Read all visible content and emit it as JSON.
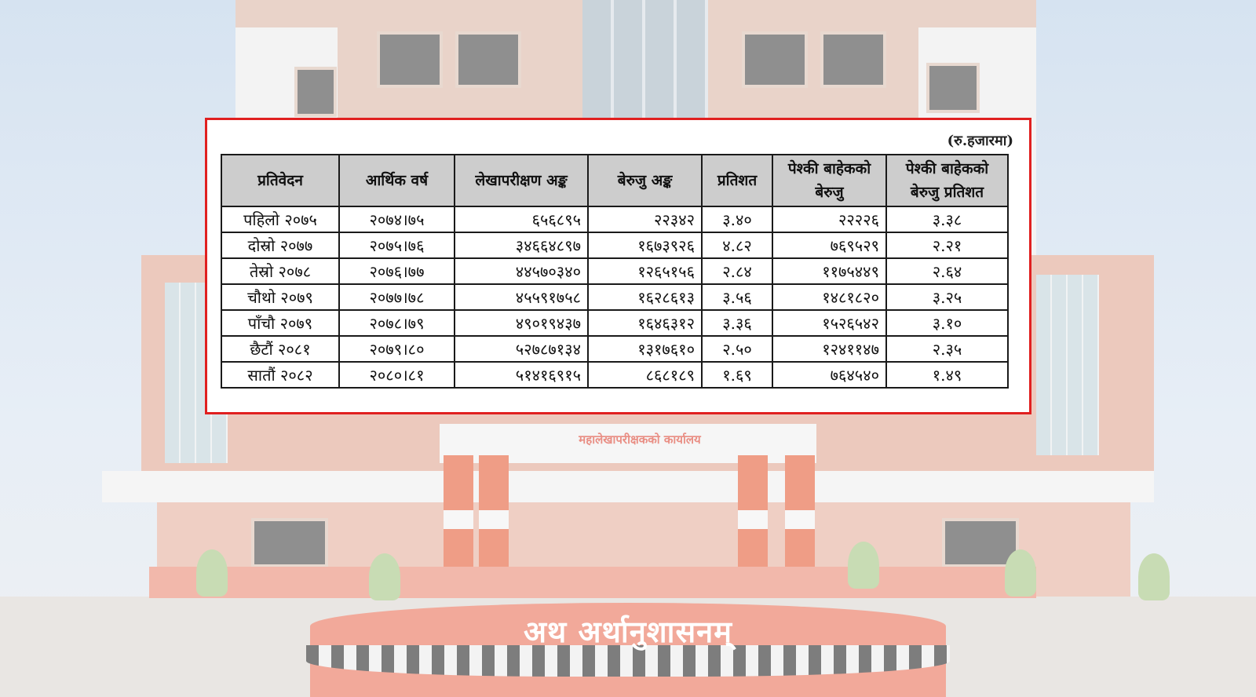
{
  "background": {
    "office_sign": "महालेखापरीक्षकको कार्यालय",
    "motto": "अथ अर्थानुशासनम्"
  },
  "table": {
    "unit_note": "(रु.हजारमा)",
    "headers": [
      "प्रतिवेदन",
      "आर्थिक वर्ष",
      "लेखापरीक्षण अङ्क",
      "बेरुजु अङ्क",
      "प्रतिशत",
      "पेश्की बाहेकको बेरुजु",
      "पेश्की बाहेकको बेरुजु प्रतिशत"
    ],
    "rows": [
      [
        "पहिलो २०७५",
        "२०७४।७५",
        "६५६८९५",
        "२२३४२",
        "३.४०",
        "२२२२६",
        "३.३८"
      ],
      [
        "दोस्रो २०७७",
        "२०७५।७६",
        "३४६६४८९७",
        "१६७३९२६",
        "४.८२",
        "७६९५२९",
        "२.२१"
      ],
      [
        "तेस्रो २०७८",
        "२०७६।७७",
        "४४५७०३४०",
        "१२६५१५६",
        "२.८४",
        "११७५४४९",
        "२.६४"
      ],
      [
        "चौथो २०७९",
        "२०७७।७८",
        "४५५९१७५८",
        "१६२८६१३",
        "३.५६",
        "१४८१८२०",
        "३.२५"
      ],
      [
        "पाँचौ २०७९",
        "२०७८।७९",
        "४९०१९४३७",
        "१६४६३१२",
        "३.३६",
        "१५२६५४२",
        "३.१०"
      ],
      [
        "छैटौं २०८१",
        "२०७९।८०",
        "५२७८७१३४",
        "१३१७६१०",
        "२.५०",
        "१२४११४७",
        "२.३५"
      ],
      [
        "सातौं २०८२",
        "२०८०।८१",
        "५१४१६९१५",
        "८६८१८९",
        "१.६९",
        "७६४५४०",
        "१.४९"
      ]
    ]
  }
}
